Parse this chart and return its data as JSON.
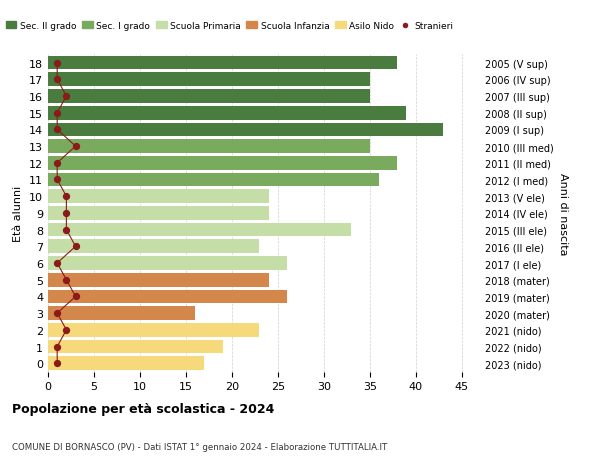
{
  "ages": [
    0,
    1,
    2,
    3,
    4,
    5,
    6,
    7,
    8,
    9,
    10,
    11,
    12,
    13,
    14,
    15,
    16,
    17,
    18
  ],
  "years_labels": [
    "2023 (nido)",
    "2022 (nido)",
    "2021 (nido)",
    "2020 (mater)",
    "2019 (mater)",
    "2018 (mater)",
    "2017 (I ele)",
    "2016 (II ele)",
    "2015 (III ele)",
    "2014 (IV ele)",
    "2013 (V ele)",
    "2012 (I med)",
    "2011 (II med)",
    "2010 (III med)",
    "2009 (I sup)",
    "2008 (II sup)",
    "2007 (III sup)",
    "2006 (IV sup)",
    "2005 (V sup)"
  ],
  "bar_values": [
    17,
    19,
    23,
    16,
    26,
    24,
    26,
    23,
    33,
    24,
    24,
    36,
    38,
    35,
    43,
    39,
    35,
    35,
    38
  ],
  "bar_colors": [
    "#f5d97a",
    "#f5d97a",
    "#f5d97a",
    "#d4874a",
    "#d4874a",
    "#d4874a",
    "#c5dea8",
    "#c5dea8",
    "#c5dea8",
    "#c5dea8",
    "#c5dea8",
    "#7aaa5e",
    "#7aaa5e",
    "#7aaa5e",
    "#4a7c3f",
    "#4a7c3f",
    "#4a7c3f",
    "#4a7c3f",
    "#4a7c3f"
  ],
  "stranieri_values": [
    1,
    1,
    2,
    1,
    3,
    2,
    1,
    3,
    2,
    2,
    2,
    1,
    1,
    3,
    1,
    1,
    2,
    1,
    1
  ],
  "stranieri_color": "#8b1a1a",
  "legend_labels": [
    "Sec. II grado",
    "Sec. I grado",
    "Scuola Primaria",
    "Scuola Infanzia",
    "Asilo Nido",
    "Stranieri"
  ],
  "legend_colors": [
    "#4a7c3f",
    "#7aaa5e",
    "#c5dea8",
    "#d4874a",
    "#f5d97a",
    "#8b1a1a"
  ],
  "title": "Popolazione per età scolastica - 2024",
  "subtitle": "COMUNE DI BORNASCO (PV) - Dati ISTAT 1° gennaio 2024 - Elaborazione TUTTITALIA.IT",
  "ylabel_left": "Età alunni",
  "ylabel_right": "Anni di nascita",
  "xlim": [
    0,
    47
  ],
  "xticks": [
    0,
    5,
    10,
    15,
    20,
    25,
    30,
    35,
    40,
    45
  ],
  "grid_color": "#d0d0d0",
  "bg_color": "#ffffff"
}
